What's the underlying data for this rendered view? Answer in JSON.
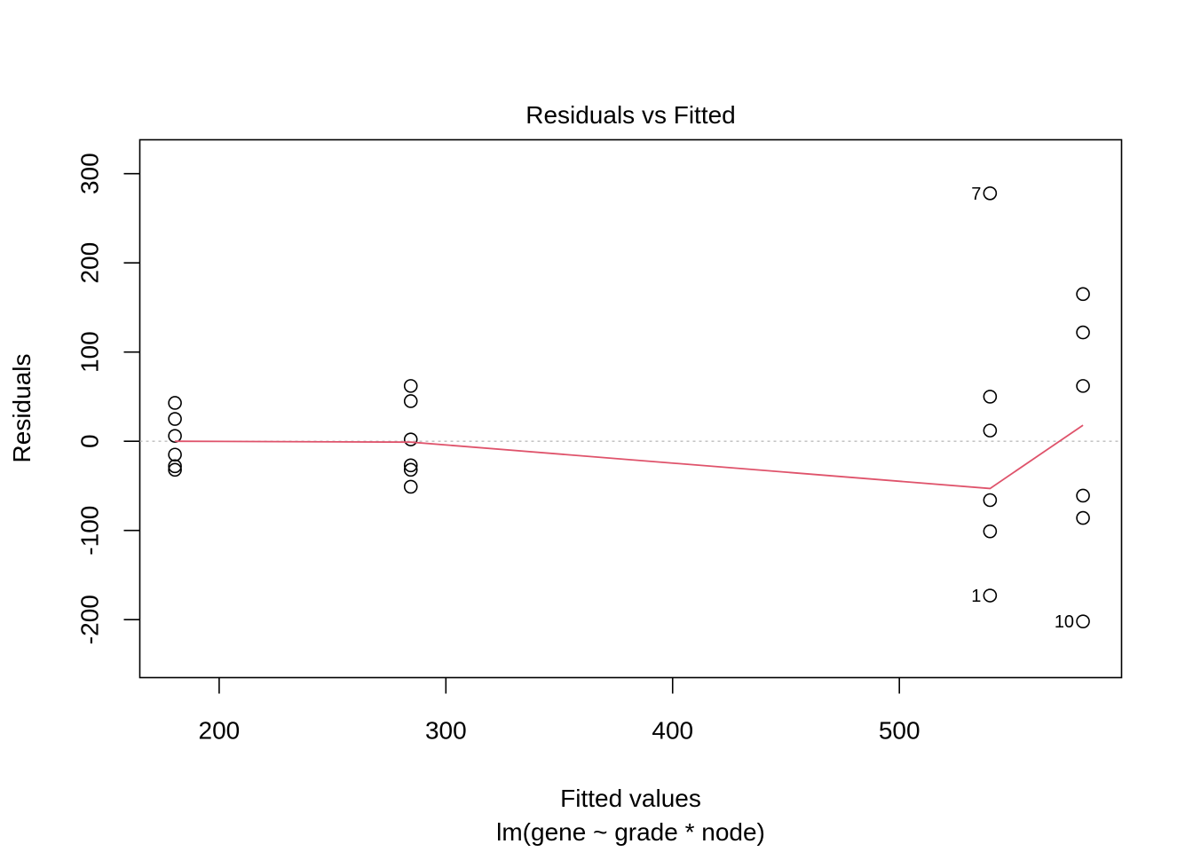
{
  "chart_data": {
    "type": "scatter",
    "title": "Residuals vs Fitted",
    "xlabel": "Fitted values",
    "subtitle": "lm(gene ~ grade * node)",
    "ylabel": "Residuals",
    "xlim": [
      165,
      598
    ],
    "ylim": [
      -265,
      338
    ],
    "x_ticks": [
      200,
      300,
      400,
      500
    ],
    "y_ticks": [
      -200,
      -100,
      0,
      100,
      200,
      300
    ],
    "x_tick_labels": [
      "200",
      "300",
      "400",
      "500"
    ],
    "y_tick_labels": [
      "-200",
      "-100",
      "0",
      "100",
      "200",
      "300"
    ],
    "grid": false,
    "reference_line": {
      "y": 0,
      "color": "#bdbdbd",
      "style": "dotted"
    },
    "points": [
      {
        "x": 180.5,
        "y": 43
      },
      {
        "x": 180.5,
        "y": 25
      },
      {
        "x": 180.5,
        "y": 6
      },
      {
        "x": 180.5,
        "y": -15
      },
      {
        "x": 180.5,
        "y": -28
      },
      {
        "x": 180.5,
        "y": -32
      },
      {
        "x": 284.5,
        "y": 62
      },
      {
        "x": 284.5,
        "y": 45
      },
      {
        "x": 284.5,
        "y": 2
      },
      {
        "x": 284.5,
        "y": -27
      },
      {
        "x": 284.5,
        "y": -32
      },
      {
        "x": 284.5,
        "y": -51
      },
      {
        "x": 540,
        "y": 278,
        "label": "7"
      },
      {
        "x": 540,
        "y": 50
      },
      {
        "x": 540,
        "y": 12
      },
      {
        "x": 540,
        "y": -66
      },
      {
        "x": 540,
        "y": -101
      },
      {
        "x": 540,
        "y": -173,
        "label": "1"
      },
      {
        "x": 581,
        "y": 165
      },
      {
        "x": 581,
        "y": 122
      },
      {
        "x": 581,
        "y": 62
      },
      {
        "x": 581,
        "y": -61
      },
      {
        "x": 581,
        "y": -86
      },
      {
        "x": 581,
        "y": -202,
        "label": "10"
      }
    ],
    "smooth_line": {
      "color": "#df536b",
      "points": [
        {
          "x": 180.5,
          "y": 0
        },
        {
          "x": 284.5,
          "y": -1
        },
        {
          "x": 540,
          "y": -53
        },
        {
          "x": 581,
          "y": 18
        }
      ]
    }
  }
}
